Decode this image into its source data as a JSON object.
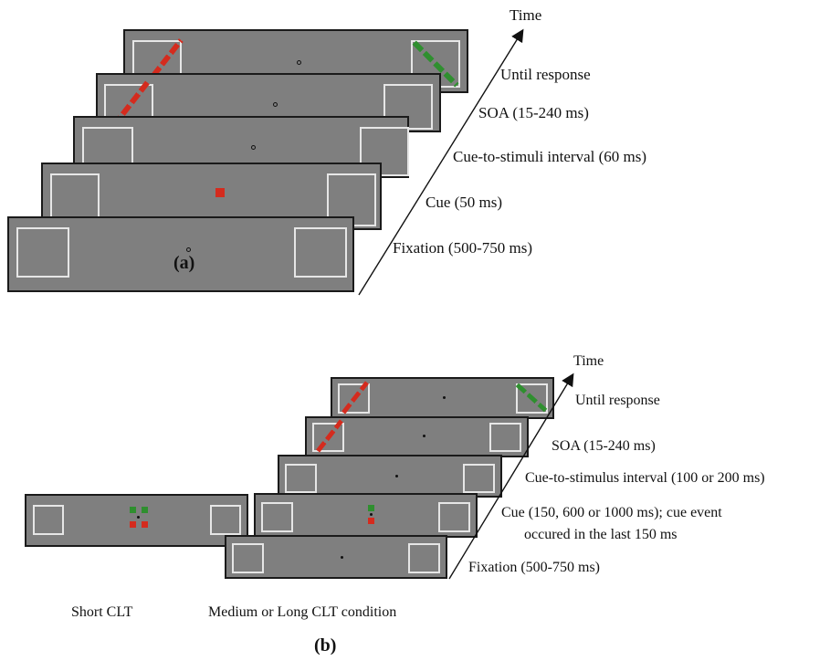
{
  "panel_a": {
    "time_label": "Time",
    "stages": {
      "until_response": "Until response",
      "soa": "SOA (15-240 ms)",
      "interval": "Cue-to-stimuli interval (60 ms)",
      "cue": "Cue (50 ms)",
      "fixation": "Fixation (500-750 ms)"
    },
    "panel_label": "(a)"
  },
  "panel_b": {
    "time_label": "Time",
    "stages": {
      "until_response": "Until response",
      "soa": "SOA (15-240 ms)",
      "interval": "Cue-to-stimulus interval (100 or 200 ms)",
      "cue_line1": "Cue (150, 600 or 1000 ms); cue event",
      "cue_line2": "occured in the last 150 ms",
      "fixation": "Fixation (500-750 ms)"
    },
    "short_label": "Short CLT",
    "medium_long_label": "Medium or Long CLT condition",
    "panel_label": "(b)"
  },
  "colors": {
    "screen": "#7f7f7f",
    "red": "#d42b1e",
    "green": "#2f8f2f",
    "frame_border": "#1a1a1a",
    "box_border": "#e6e6e6"
  }
}
